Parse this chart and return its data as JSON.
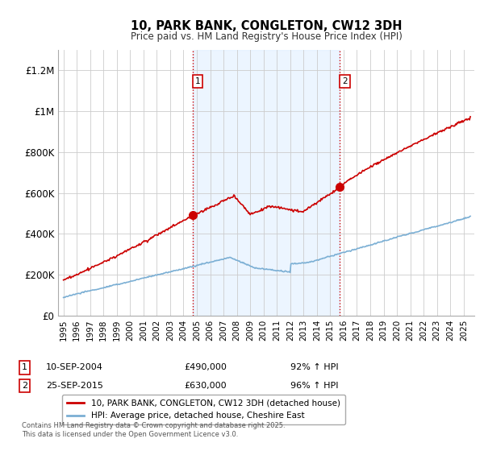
{
  "title": "10, PARK BANK, CONGLETON, CW12 3DH",
  "subtitle": "Price paid vs. HM Land Registry's House Price Index (HPI)",
  "ylim": [
    0,
    1300000
  ],
  "yticks": [
    0,
    200000,
    400000,
    600000,
    800000,
    1000000,
    1200000
  ],
  "ytick_labels": [
    "£0",
    "£200K",
    "£400K",
    "£600K",
    "£800K",
    "£1M",
    "£1.2M"
  ],
  "xlim_start": 1994.6,
  "xlim_end": 2025.8,
  "xticks": [
    1995,
    1996,
    1997,
    1998,
    1999,
    2000,
    2001,
    2002,
    2003,
    2004,
    2005,
    2006,
    2007,
    2008,
    2009,
    2010,
    2011,
    2012,
    2013,
    2014,
    2015,
    2016,
    2017,
    2018,
    2019,
    2020,
    2021,
    2022,
    2023,
    2024,
    2025
  ],
  "background_color": "#ffffff",
  "plot_bg_color": "#ffffff",
  "grid_color": "#cccccc",
  "sale1_x": 2004.71,
  "sale1_y": 490000,
  "sale1_label": "1",
  "sale2_x": 2015.73,
  "sale2_y": 630000,
  "sale2_label": "2",
  "vline_color": "#cc0000",
  "vline_style": ":",
  "shade_color": "#ddeeff",
  "shade_alpha": 0.55,
  "sale_marker_color": "#cc0000",
  "hpi_line_color": "#7bafd4",
  "price_line_color": "#cc0000",
  "footnote": "Contains HM Land Registry data © Crown copyright and database right 2025.\nThis data is licensed under the Open Government Licence v3.0.",
  "legend1_label": "10, PARK BANK, CONGLETON, CW12 3DH (detached house)",
  "legend2_label": "HPI: Average price, detached house, Cheshire East",
  "table_row1": [
    "1",
    "10-SEP-2004",
    "£490,000",
    "92% ↑ HPI"
  ],
  "table_row2": [
    "2",
    "25-SEP-2015",
    "£630,000",
    "96% ↑ HPI"
  ]
}
